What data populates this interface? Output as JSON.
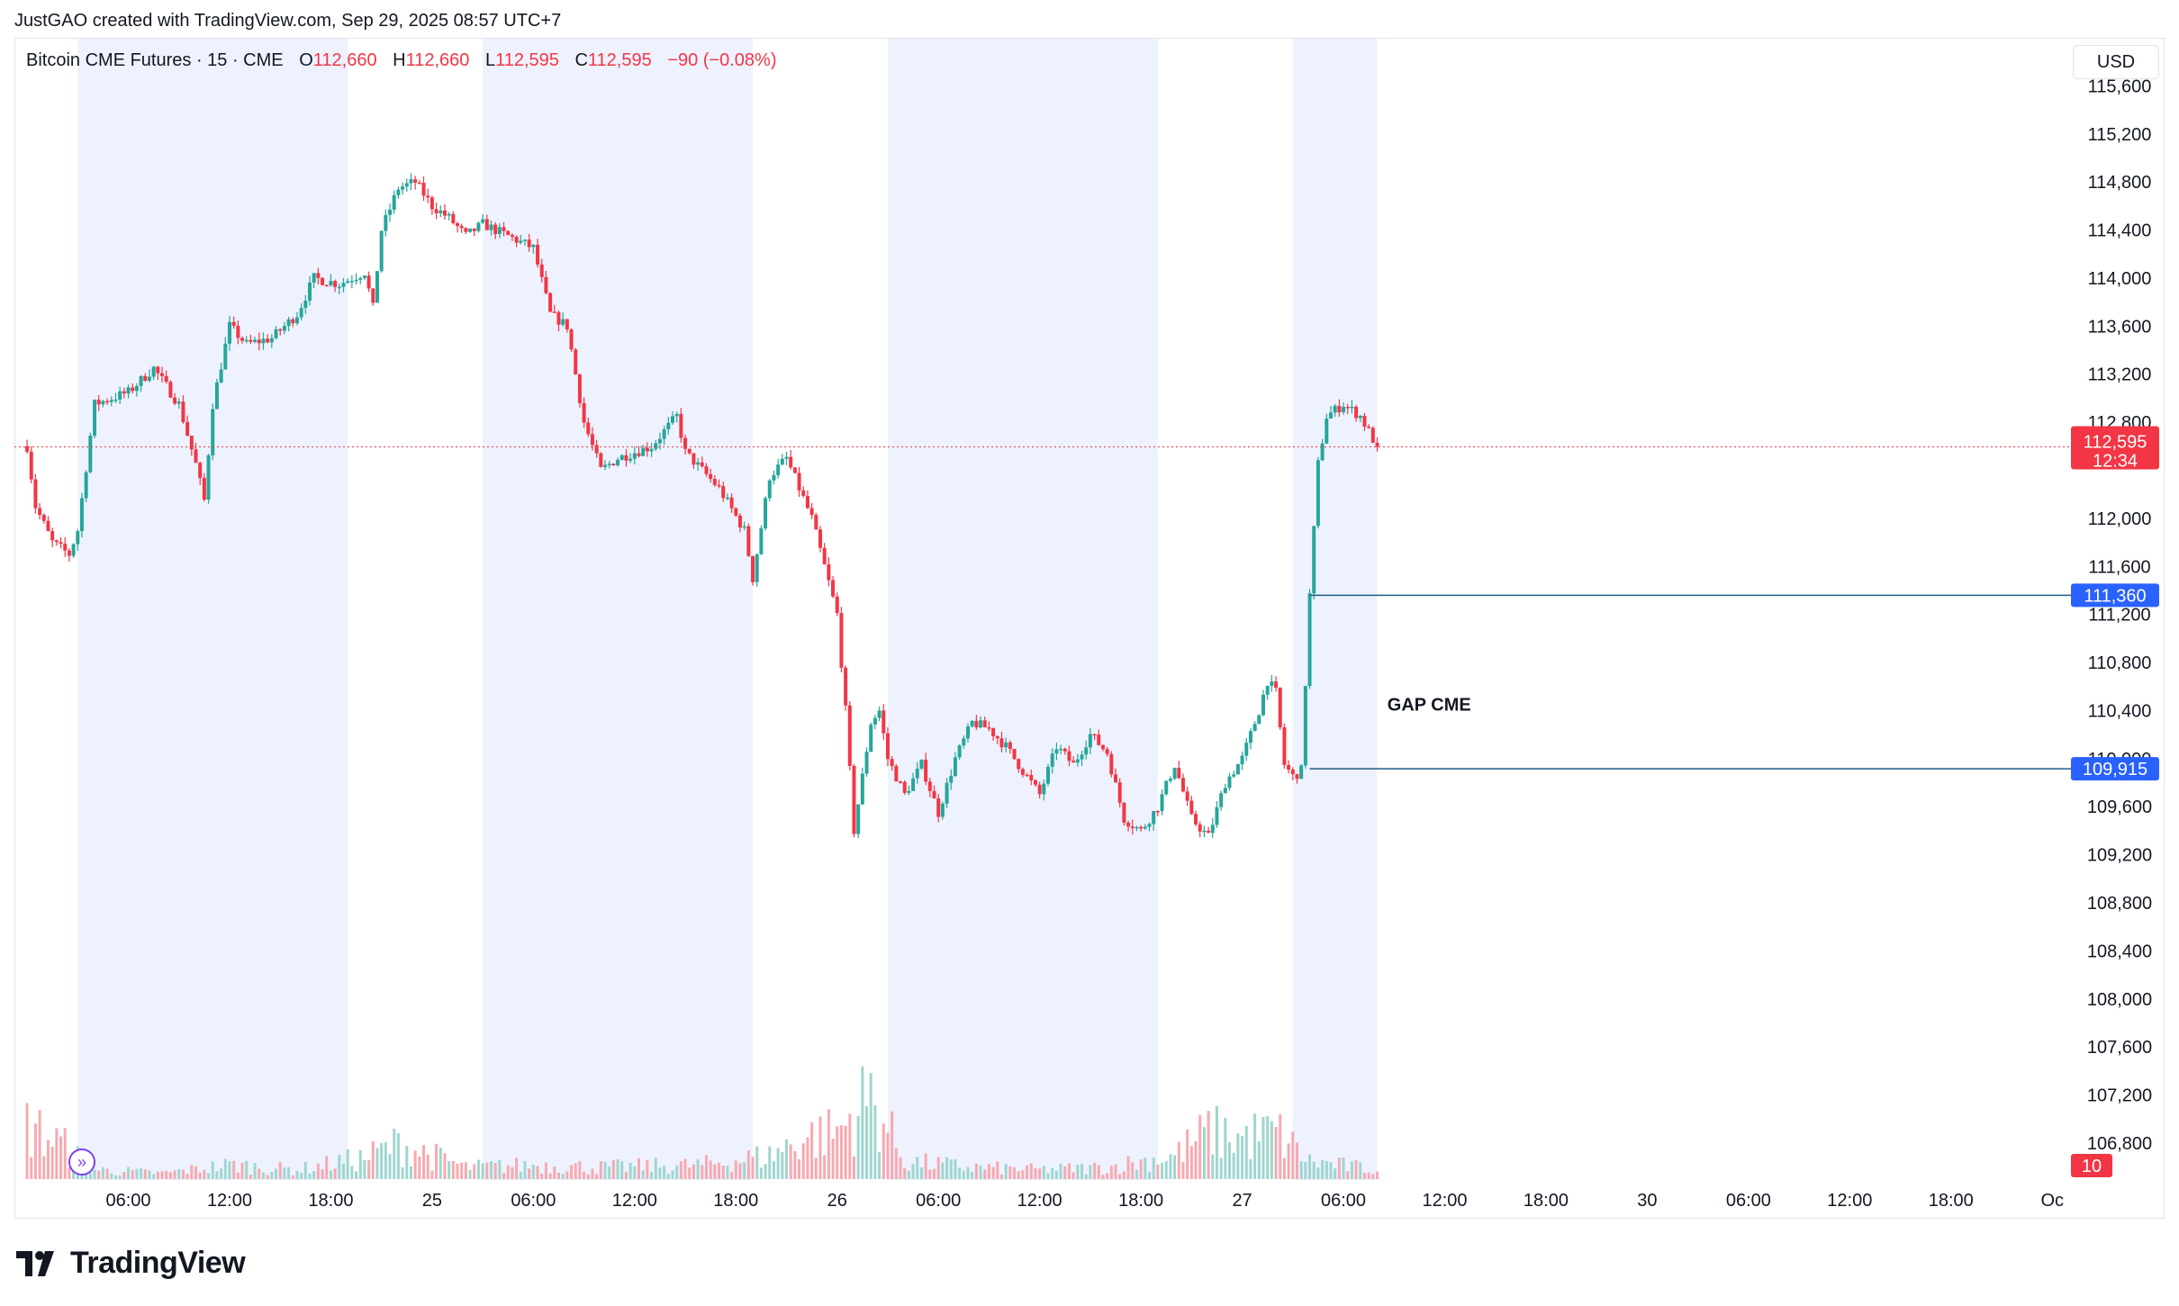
{
  "credit": "JustGAO created with TradingView.com, Sep 29, 2025 08:57 UTC+7",
  "legend": {
    "symbol": "Bitcoin CME Futures · 15 · CME",
    "o_label": "O",
    "o_value": "112,660",
    "h_label": "H",
    "h_value": "112,660",
    "l_label": "L",
    "l_value": "112,595",
    "c_label": "C",
    "c_value": "112,595",
    "change": "−90 (−0.08%)"
  },
  "currency": "USD",
  "brand": "TradingView",
  "colors": {
    "up": "#26a69a",
    "down": "#f23645",
    "session_shade": "#eef2fe",
    "level_line": "#1e5b85",
    "level_label_bg": "#2962ff",
    "grid": "#f0f3fa"
  },
  "chart_data": {
    "type": "candlestick",
    "symbol": "Bitcoin CME Futures",
    "interval": "15",
    "exchange": "CME",
    "currency": "USD",
    "ylim": [
      106500,
      116000
    ],
    "y_ticks": [
      115600,
      115200,
      114800,
      114400,
      114000,
      113600,
      113200,
      112800,
      112000,
      111600,
      111200,
      110800,
      110400,
      110000,
      109600,
      109200,
      108800,
      108400,
      108000,
      107600,
      107200,
      106800
    ],
    "y_tick_labels": [
      "115,600",
      "115,200",
      "114,800",
      "114,400",
      "114,000",
      "113,600",
      "113,200",
      "112,800",
      "112,000",
      "111,600",
      "111,200",
      "110,800",
      "110,400",
      "110,000",
      "109,600",
      "109,200",
      "108,800",
      "108,400",
      "108,000",
      "107,600",
      "107,200",
      "106,800"
    ],
    "x_tick_labels": [
      "06:00",
      "12:00",
      "18:00",
      "25",
      "06:00",
      "12:00",
      "18:00",
      "26",
      "06:00",
      "12:00",
      "18:00",
      "27",
      "06:00",
      "12:00",
      "18:00",
      "30",
      "06:00",
      "12:00",
      "18:00",
      "Oc"
    ],
    "x_tick_hours": [
      6,
      12,
      18,
      24,
      30,
      36,
      42,
      48,
      54,
      60,
      66,
      72,
      78,
      84,
      90,
      96,
      102,
      108,
      114,
      120
    ],
    "x_range_hours": [
      -0.75,
      121
    ],
    "session_shading_hours": [
      [
        3,
        19
      ],
      [
        27,
        43
      ],
      [
        51,
        67
      ],
      [
        75,
        80
      ]
    ],
    "price_path": [
      [
        0,
        112600
      ],
      [
        0.5,
        112100
      ],
      [
        1.5,
        111800
      ],
      [
        2.5,
        111700
      ],
      [
        3,
        111900
      ],
      [
        4,
        112950
      ],
      [
        6,
        113050
      ],
      [
        7.5,
        113250
      ],
      [
        9,
        112950
      ],
      [
        10,
        112450
      ],
      [
        10.5,
        112150
      ],
      [
        11,
        112950
      ],
      [
        12,
        113600
      ],
      [
        13,
        113450
      ],
      [
        14.5,
        113500
      ],
      [
        16,
        113700
      ],
      [
        17,
        114000
      ],
      [
        18.5,
        113950
      ],
      [
        20,
        114050
      ],
      [
        20.5,
        113750
      ],
      [
        21,
        114400
      ],
      [
        22,
        114750
      ],
      [
        23,
        114800
      ],
      [
        24,
        114600
      ],
      [
        25,
        114500
      ],
      [
        26,
        114350
      ],
      [
        27,
        114450
      ],
      [
        28.5,
        114350
      ],
      [
        30,
        114250
      ],
      [
        31,
        113700
      ],
      [
        32,
        113600
      ],
      [
        33,
        112800
      ],
      [
        34,
        112400
      ],
      [
        35,
        112500
      ],
      [
        37,
        112600
      ],
      [
        38.5,
        112850
      ],
      [
        39,
        112550
      ],
      [
        41,
        112250
      ],
      [
        42.5,
        111900
      ],
      [
        43,
        111500
      ],
      [
        44,
        112350
      ],
      [
        45,
        112500
      ],
      [
        46.5,
        112000
      ],
      [
        48,
        111200
      ],
      [
        48.5,
        110400
      ],
      [
        49,
        109400
      ],
      [
        50,
        110300
      ],
      [
        50.5,
        110400
      ],
      [
        51,
        110000
      ],
      [
        52,
        109700
      ],
      [
        53,
        109950
      ],
      [
        54,
        109550
      ],
      [
        55,
        110000
      ],
      [
        56,
        110300
      ],
      [
        57,
        110250
      ],
      [
        58,
        110100
      ],
      [
        59,
        109900
      ],
      [
        60,
        109700
      ],
      [
        61,
        110100
      ],
      [
        62,
        109950
      ],
      [
        63,
        110200
      ],
      [
        64,
        110050
      ],
      [
        65,
        109500
      ],
      [
        66,
        109400
      ],
      [
        67,
        109600
      ],
      [
        68,
        109950
      ],
      [
        69,
        109500
      ],
      [
        70,
        109350
      ],
      [
        71,
        109800
      ],
      [
        72,
        110000
      ],
      [
        73,
        110400
      ],
      [
        73.5,
        110650
      ],
      [
        74,
        110550
      ],
      [
        74.5,
        109950
      ],
      [
        75,
        109850
      ],
      [
        75.5,
        109900
      ],
      [
        76,
        111360
      ],
      [
        76.5,
        112450
      ],
      [
        77,
        112850
      ],
      [
        78,
        112950
      ],
      [
        79,
        112850
      ],
      [
        80,
        112595
      ]
    ],
    "volume_profile": [
      [
        0,
        0.45
      ],
      [
        2,
        0.3
      ],
      [
        4,
        0.08
      ],
      [
        8,
        0.05
      ],
      [
        12,
        0.12
      ],
      [
        16,
        0.08
      ],
      [
        20,
        0.18
      ],
      [
        22,
        0.3
      ],
      [
        26,
        0.1
      ],
      [
        30,
        0.12
      ],
      [
        34,
        0.1
      ],
      [
        40,
        0.12
      ],
      [
        44,
        0.2
      ],
      [
        46,
        0.35
      ],
      [
        48,
        0.4
      ],
      [
        50,
        0.7
      ],
      [
        52,
        0.15
      ],
      [
        56,
        0.1
      ],
      [
        60,
        0.08
      ],
      [
        64,
        0.1
      ],
      [
        68,
        0.2
      ],
      [
        70,
        0.4
      ],
      [
        72,
        0.35
      ],
      [
        74,
        0.4
      ],
      [
        76,
        0.15
      ],
      [
        80,
        0.08
      ]
    ],
    "volume_last_label": "10",
    "price_levels": [
      {
        "value": 111360,
        "label": "111,360",
        "start_hour": 76
      },
      {
        "value": 109915,
        "label": "109,915",
        "start_hour": 76
      }
    ],
    "last_price": {
      "value": 112595,
      "label": "112,595",
      "countdown": "12:34"
    },
    "annotation": {
      "text": "GAP CME",
      "hour": 80.6,
      "price": 110400
    }
  }
}
